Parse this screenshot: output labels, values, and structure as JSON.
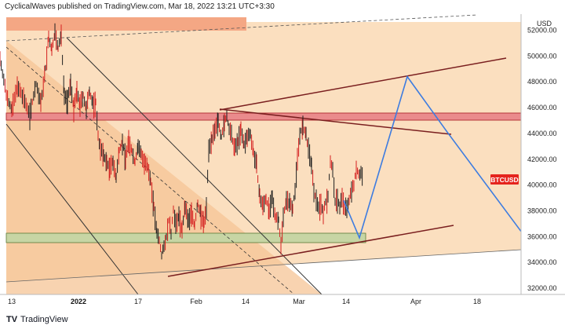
{
  "header": {
    "publisher": "CyclicalWaves",
    "text": "CyclicalWaves published on TradingView.com, Mar 18, 2022 13:21 UTC+3:30"
  },
  "footer": {
    "logo_text": "TradingView",
    "logo_mark": "TV"
  },
  "chart_data": {
    "type": "candlestick",
    "symbol": "BTCUSD",
    "currency_label": "USD",
    "price_axis_ticks": [
      "52000.00",
      "50000.00",
      "48000.00",
      "46000.00",
      "44000.00",
      "42000.00",
      "40000.00",
      "38000.00",
      "36000.00",
      "34000.00",
      "32000.00"
    ],
    "ylim": [
      31500,
      53500
    ],
    "time_axis_ticks": [
      {
        "label": "13",
        "bold": false
      },
      {
        "label": "2022",
        "bold": true
      },
      {
        "label": "17",
        "bold": false
      },
      {
        "label": "Feb",
        "bold": false
      },
      {
        "label": "14",
        "bold": false
      },
      {
        "label": "Mar",
        "bold": false
      },
      {
        "label": "14",
        "bold": false
      },
      {
        "label": "Apr",
        "bold": false
      },
      {
        "label": "18",
        "bold": false
      }
    ],
    "price_path": [
      [
        0,
        49800
      ],
      [
        8,
        47000
      ],
      [
        15,
        45800
      ],
      [
        22,
        47600
      ],
      [
        30,
        46700
      ],
      [
        38,
        45500
      ],
      [
        46,
        47800
      ],
      [
        52,
        46300
      ],
      [
        58,
        49000
      ],
      [
        62,
        51400
      ],
      [
        66,
        50400
      ],
      [
        70,
        51800
      ],
      [
        74,
        50500
      ],
      [
        78,
        51600
      ],
      [
        82,
        47000
      ],
      [
        86,
        46500
      ],
      [
        90,
        47900
      ],
      [
        94,
        45900
      ],
      [
        98,
        47200
      ],
      [
        102,
        46200
      ],
      [
        106,
        46900
      ],
      [
        110,
        45800
      ],
      [
        114,
        47300
      ],
      [
        118,
        46300
      ],
      [
        122,
        46400
      ],
      [
        125,
        43800
      ],
      [
        128,
        42800
      ],
      [
        132,
        42300
      ],
      [
        136,
        41700
      ],
      [
        140,
        41300
      ],
      [
        144,
        41800
      ],
      [
        148,
        40500
      ],
      [
        152,
        42700
      ],
      [
        156,
        43300
      ],
      [
        160,
        42100
      ],
      [
        164,
        43400
      ],
      [
        168,
        42600
      ],
      [
        172,
        41700
      ],
      [
        176,
        43000
      ],
      [
        180,
        42400
      ],
      [
        184,
        41700
      ],
      [
        188,
        41300
      ],
      [
        192,
        40300
      ],
      [
        196,
        38300
      ],
      [
        200,
        36300
      ],
      [
        203,
        35700
      ],
      [
        206,
        34600
      ],
      [
        209,
        35300
      ],
      [
        212,
        35900
      ],
      [
        215,
        37200
      ],
      [
        218,
        36200
      ],
      [
        221,
        38100
      ],
      [
        224,
        36900
      ],
      [
        228,
        37600
      ],
      [
        232,
        36500
      ],
      [
        236,
        38300
      ],
      [
        240,
        37200
      ],
      [
        244,
        37900
      ],
      [
        248,
        36800
      ],
      [
        252,
        38500
      ],
      [
        256,
        37700
      ],
      [
        260,
        37000
      ],
      [
        263,
        38300
      ],
      [
        266,
        42800
      ],
      [
        270,
        43600
      ],
      [
        274,
        44100
      ],
      [
        278,
        45000
      ],
      [
        282,
        43700
      ],
      [
        286,
        44800
      ],
      [
        289,
        45300
      ],
      [
        292,
        44300
      ],
      [
        295,
        43800
      ],
      [
        299,
        42800
      ],
      [
        303,
        43400
      ],
      [
        307,
        44200
      ],
      [
        311,
        43100
      ],
      [
        315,
        43700
      ],
      [
        319,
        44000
      ],
      [
        323,
        42500
      ],
      [
        327,
        41500
      ],
      [
        331,
        39000
      ],
      [
        335,
        38400
      ],
      [
        339,
        38900
      ],
      [
        343,
        38000
      ],
      [
        347,
        38900
      ],
      [
        351,
        37500
      ],
      [
        355,
        37300
      ],
      [
        358,
        35300
      ],
      [
        361,
        37600
      ],
      [
        365,
        38800
      ],
      [
        369,
        38600
      ],
      [
        373,
        38200
      ],
      [
        376,
        39600
      ],
      [
        379,
        42100
      ],
      [
        382,
        43900
      ],
      [
        386,
        44500
      ],
      [
        390,
        43800
      ],
      [
        393,
        42800
      ],
      [
        397,
        41600
      ],
      [
        400,
        39300
      ],
      [
        403,
        38900
      ],
      [
        406,
        38300
      ],
      [
        409,
        38600
      ],
      [
        412,
        37800
      ],
      [
        415,
        38700
      ],
      [
        418,
        39000
      ],
      [
        421,
        41900
      ],
      [
        424,
        41100
      ],
      [
        427,
        38700
      ],
      [
        430,
        38900
      ],
      [
        433,
        38300
      ],
      [
        436,
        39100
      ],
      [
        439,
        38300
      ],
      [
        442,
        38100
      ],
      [
        445,
        38900
      ],
      [
        448,
        39500
      ],
      [
        451,
        40000
      ],
      [
        454,
        41300
      ],
      [
        457,
        40800
      ],
      [
        460,
        40900
      ],
      [
        463,
        40600
      ]
    ],
    "projection_path": [
      [
        438,
        38800
      ],
      [
        458,
        35900
      ],
      [
        519,
        48400
      ],
      [
        570,
        44100
      ],
      [
        664,
        36400
      ]
    ],
    "current_price_label": "BTCUSD"
  }
}
